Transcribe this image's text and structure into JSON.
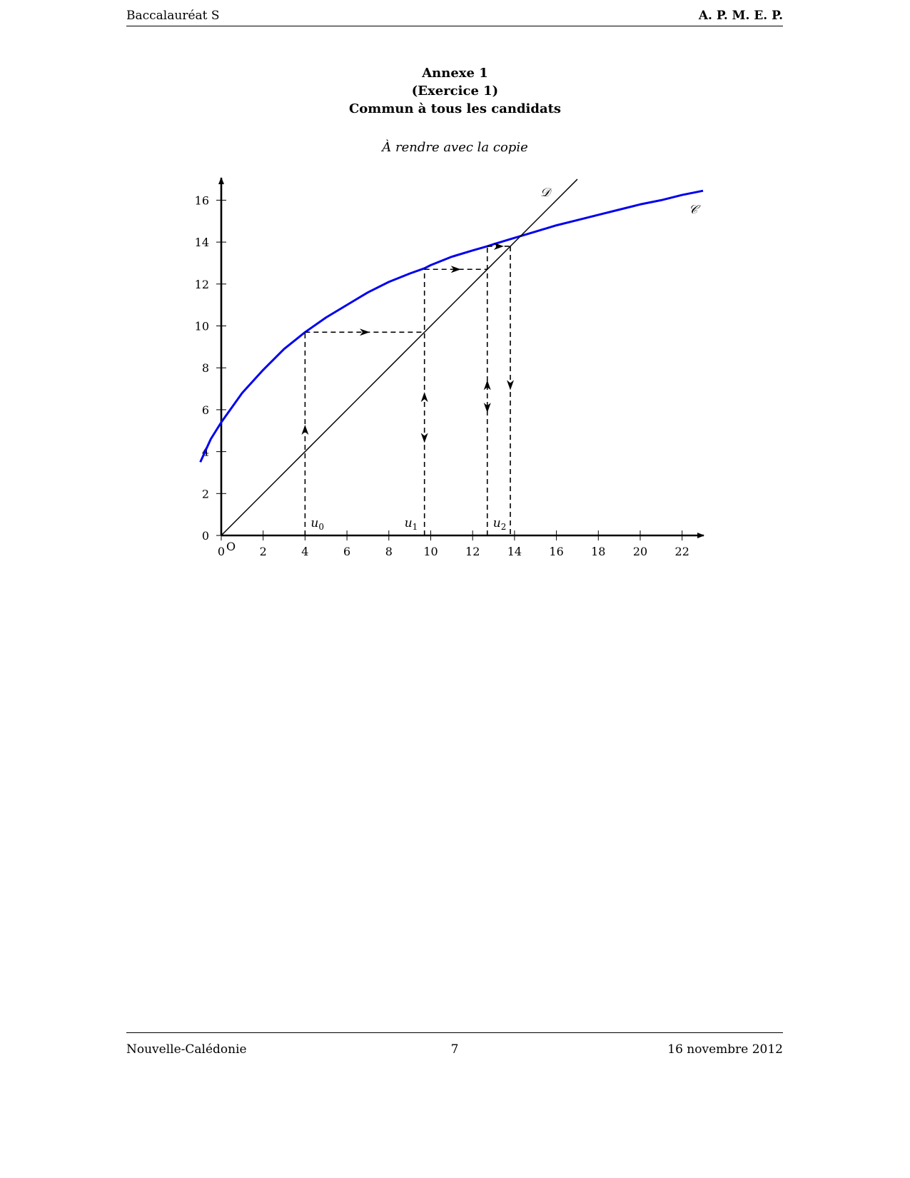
{
  "header": {
    "left": "Baccalauréat S",
    "right": "A. P. M. E. P."
  },
  "titles": {
    "line1": "Annexe 1",
    "line2": "(Exercice 1)",
    "line3": "Commun à tous les candidats",
    "subtitle": "À rendre avec la copie"
  },
  "footer": {
    "left": "Nouvelle-Calédonie",
    "center": "7",
    "right": "16 novembre 2012"
  },
  "chart_data": {
    "type": "line",
    "x_ticks": [
      0,
      2,
      4,
      6,
      8,
      10,
      12,
      14,
      16,
      18,
      20,
      22
    ],
    "y_ticks": [
      0,
      2,
      4,
      6,
      8,
      10,
      12,
      14,
      16
    ],
    "xlim": [
      -1,
      23
    ],
    "ylim": [
      0,
      17
    ],
    "origin_label": "O",
    "series": [
      {
        "name": "𝒞",
        "color": "#0000ee",
        "kind": "curve",
        "x": [
          -1,
          -0.5,
          0,
          1,
          2,
          3,
          4,
          5,
          6,
          7,
          8,
          9,
          9.7,
          10,
          11,
          12,
          12.7,
          13,
          14,
          15,
          16,
          17,
          18,
          19,
          20,
          21,
          22,
          23
        ],
        "y": [
          3.5,
          4.6,
          5.4,
          6.8,
          7.9,
          8.9,
          9.7,
          10.4,
          11.0,
          11.6,
          12.1,
          12.5,
          12.75,
          12.9,
          13.3,
          13.6,
          13.8,
          13.9,
          14.2,
          14.5,
          14.8,
          15.05,
          15.3,
          15.55,
          15.8,
          16.0,
          16.25,
          16.45
        ]
      },
      {
        "name": "𝒟",
        "color": "#000000",
        "kind": "line",
        "x": [
          0,
          17
        ],
        "y": [
          0,
          17
        ]
      }
    ],
    "iterates": [
      {
        "label": "u",
        "index": "0",
        "x": 4,
        "fx": 9.7
      },
      {
        "label": "u",
        "index": "1",
        "x": 9.7,
        "fx": 12.7
      },
      {
        "label": "u",
        "index": "2",
        "x": 12.7,
        "fx": 13.8
      }
    ]
  }
}
